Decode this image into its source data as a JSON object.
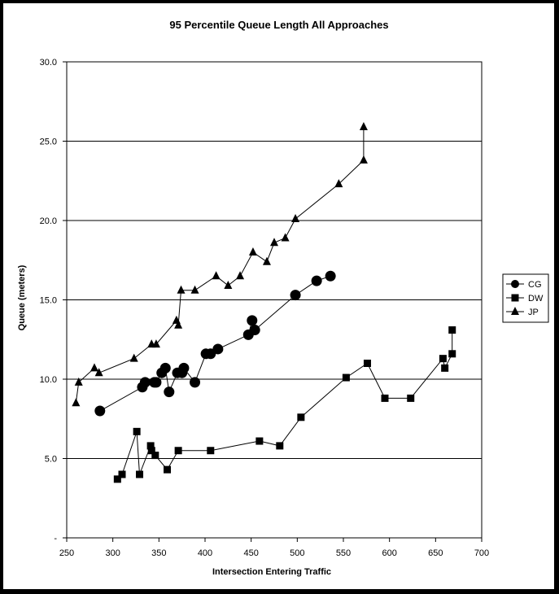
{
  "chart_data": {
    "type": "scatter",
    "title": "95 Percentile Queue Length All Approaches",
    "xlabel": "Intersection Entering Traffic",
    "ylabel": "Queue (meters)",
    "xlim": [
      250,
      700
    ],
    "ylim": [
      0,
      30
    ],
    "x_ticks": [
      "250",
      "300",
      "350",
      "400",
      "450",
      "500",
      "550",
      "600",
      "650",
      "700"
    ],
    "y_ticks": [
      "-",
      "5.0",
      "10.0",
      "15.0",
      "20.0",
      "25.0",
      "30.0"
    ],
    "grid": "horizontal",
    "legend_position": "right",
    "series": [
      {
        "name": "CG",
        "marker": "circle",
        "points": [
          [
            286,
            8.0
          ],
          [
            332,
            9.5
          ],
          [
            335,
            9.8
          ],
          [
            345,
            9.8
          ],
          [
            347,
            9.8
          ],
          [
            353,
            10.4
          ],
          [
            357,
            10.7
          ],
          [
            361,
            9.2
          ],
          [
            370,
            10.4
          ],
          [
            375,
            10.4
          ],
          [
            377,
            10.7
          ],
          [
            389,
            9.8
          ],
          [
            401,
            11.6
          ],
          [
            406,
            11.6
          ],
          [
            414,
            11.9
          ],
          [
            447,
            12.8
          ],
          [
            451,
            13.7
          ],
          [
            454,
            13.1
          ],
          [
            498,
            15.3
          ],
          [
            521,
            16.2
          ],
          [
            536,
            16.5
          ]
        ]
      },
      {
        "name": "DW",
        "marker": "square",
        "points": [
          [
            305,
            3.7
          ],
          [
            310,
            4.0
          ],
          [
            326,
            6.7
          ],
          [
            329,
            4.0
          ],
          [
            341,
            5.8
          ],
          [
            342,
            5.5
          ],
          [
            346,
            5.2
          ],
          [
            359,
            4.3
          ],
          [
            371,
            5.5
          ],
          [
            406,
            5.5
          ],
          [
            459,
            6.1
          ],
          [
            481,
            5.8
          ],
          [
            504,
            7.6
          ],
          [
            553,
            10.1
          ],
          [
            576,
            11.0
          ],
          [
            595,
            8.8
          ],
          [
            623,
            8.8
          ],
          [
            658,
            11.3
          ],
          [
            660,
            10.7
          ],
          [
            668,
            11.6
          ],
          [
            668,
            13.1
          ]
        ]
      },
      {
        "name": "JP",
        "marker": "triangle",
        "points": [
          [
            260,
            8.5
          ],
          [
            263,
            9.8
          ],
          [
            280,
            10.7
          ],
          [
            285,
            10.4
          ],
          [
            323,
            11.3
          ],
          [
            342,
            12.2
          ],
          [
            347,
            12.2
          ],
          [
            369,
            13.7
          ],
          [
            371,
            13.4
          ],
          [
            374,
            15.6
          ],
          [
            389,
            15.6
          ],
          [
            412,
            16.5
          ],
          [
            425,
            15.9
          ],
          [
            438,
            16.5
          ],
          [
            452,
            18.0
          ],
          [
            467,
            17.4
          ],
          [
            475,
            18.6
          ],
          [
            487,
            18.9
          ],
          [
            498,
            20.1
          ],
          [
            545,
            22.3
          ],
          [
            572,
            23.8
          ],
          [
            572,
            25.9
          ]
        ]
      }
    ]
  }
}
